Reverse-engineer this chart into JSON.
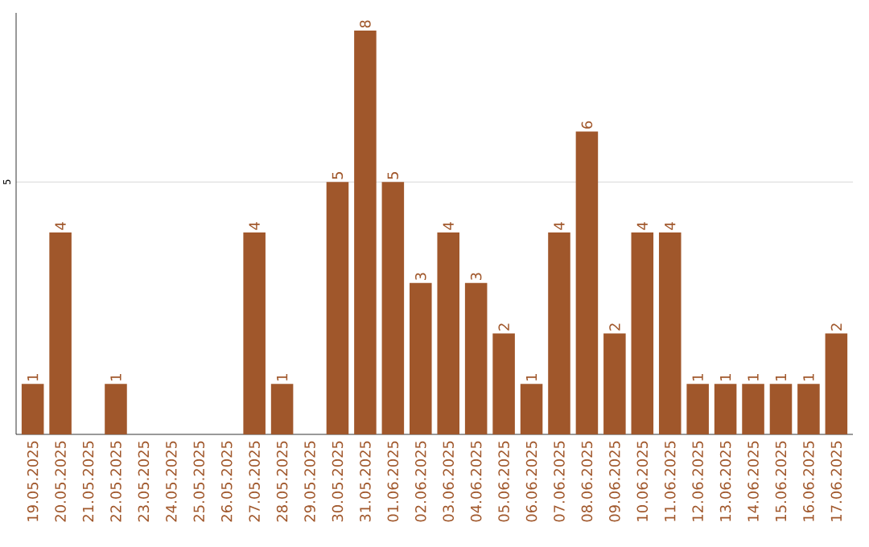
{
  "chart_data": {
    "type": "bar",
    "categories": [
      "19.05.2025",
      "20.05.2025",
      "21.05.2025",
      "22.05.2025",
      "23.05.2025",
      "24.05.2025",
      "25.05.2025",
      "26.05.2025",
      "27.05.2025",
      "28.05.2025",
      "29.05.2025",
      "30.05.2025",
      "31.05.2025",
      "01.06.2025",
      "02.06.2025",
      "03.06.2025",
      "04.06.2025",
      "05.06.2025",
      "06.06.2025",
      "07.06.2025",
      "08.06.2025",
      "09.06.2025",
      "10.06.2025",
      "11.06.2025",
      "12.06.2025",
      "13.06.2025",
      "14.06.2025",
      "15.06.2025",
      "16.06.2025",
      "17.06.2025"
    ],
    "values": [
      1,
      4,
      0,
      1,
      0,
      0,
      0,
      0,
      4,
      1,
      0,
      5,
      8,
      5,
      3,
      4,
      3,
      2,
      1,
      4,
      6,
      2,
      4,
      4,
      1,
      1,
      1,
      1,
      1,
      2
    ],
    "value_labels": [
      "1",
      "4",
      null,
      "1",
      null,
      null,
      null,
      null,
      "4",
      "1",
      null,
      "5",
      "8",
      "5",
      "3",
      "4",
      "3",
      "2",
      "1",
      "4",
      "6",
      "2",
      "4",
      "4",
      "1",
      "1",
      "1",
      "1",
      "1",
      "2"
    ],
    "color": "#a0572b",
    "ylim": [
      0,
      8.35
    ],
    "yticks": [
      5
    ],
    "grid": "y"
  }
}
